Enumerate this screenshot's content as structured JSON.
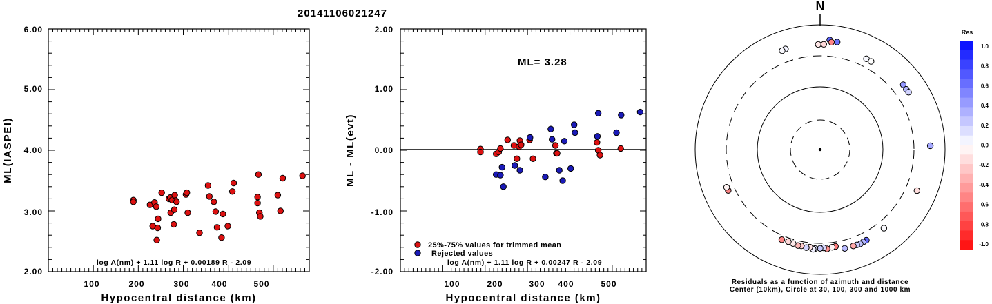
{
  "chart_data": [
    {
      "type": "scatter",
      "title": "20141106021247",
      "xlabel": "Hypocentral distance (km)",
      "ylabel": "ML(IASPEI)",
      "xlim": [
        0,
        580
      ],
      "ylim": [
        2.0,
        6.0
      ],
      "xticks": [
        "100",
        "200",
        "300",
        "400",
        "500"
      ],
      "yticks": [
        "2.00",
        "3.00",
        "4.00",
        "5.00",
        "6.00"
      ],
      "equation": "log A(nm) + 1.11 log R + 0.00189 R - 2.09",
      "marker_color": "#dd1111",
      "x": [
        189,
        189,
        226,
        232,
        236,
        240,
        241,
        244,
        243,
        252,
        268,
        271,
        272,
        275,
        279,
        280,
        281,
        283,
        285,
        306,
        308,
        310,
        336,
        355,
        358,
        368,
        372,
        375,
        385,
        388,
        399,
        409,
        412,
        465,
        465,
        467,
        469,
        471,
        510,
        516,
        521,
        565
      ],
      "y": [
        3.18,
        3.15,
        3.1,
        2.75,
        3.14,
        3.07,
        2.52,
        2.87,
        2.72,
        3.3,
        3.2,
        3.22,
        2.97,
        3.18,
        2.78,
        3.02,
        3.26,
        3.17,
        3.15,
        3.27,
        3.3,
        2.97,
        2.64,
        3.42,
        3.24,
        3.15,
        2.99,
        2.73,
        2.56,
        2.95,
        2.75,
        3.32,
        3.46,
        3.23,
        3.13,
        3.6,
        2.97,
        2.91,
        3.26,
        3.0,
        3.54,
        3.58
      ]
    },
    {
      "type": "scatter",
      "xlabel": "Hypocentral distance (km)",
      "ylabel": "ML - ML(evt)",
      "xlim": [
        0,
        580
      ],
      "ylim": [
        -2.0,
        2.0
      ],
      "xticks": [
        "100",
        "200",
        "300",
        "400",
        "500"
      ],
      "yticks": [
        "-2.00",
        "-1.00",
        "0.00",
        "1.00",
        "2.00"
      ],
      "ml_label": "ML= 3.28",
      "equation": "log A(nm) + 1.11 log R + 0.00247 R - 2.09",
      "legend": [
        "25%-75% values for trimmed mean",
        "Rejected values"
      ],
      "legend_colors": [
        "#dd1111",
        "#1a1ab8"
      ],
      "series": [
        {
          "name": "25%-75% values for trimmed mean",
          "x": [
            189,
            189,
            226,
            232,
            236,
            253,
            268,
            275,
            280,
            282,
            285,
            305,
            313,
            366,
            368,
            370,
            464,
            467,
            471,
            520
          ],
          "y": [
            0.02,
            -0.03,
            -0.06,
            -0.03,
            0.03,
            0.17,
            0.08,
            -0.14,
            0.06,
            0.16,
            0.09,
            0.17,
            -0.14,
            0.08,
            -0.05,
            -0.05,
            0.13,
            0.0,
            -0.08,
            0.03
          ]
        },
        {
          "name": "Rejected values",
          "x": [
            226,
            236,
            240,
            243,
            270,
            282,
            306,
            342,
            355,
            358,
            375,
            383,
            387,
            402,
            410,
            412,
            465,
            467,
            510,
            521,
            566
          ],
          "y": [
            -0.4,
            -0.41,
            -0.28,
            -0.6,
            -0.25,
            -0.33,
            0.21,
            -0.44,
            0.35,
            0.18,
            -0.33,
            -0.5,
            0.15,
            -0.3,
            0.42,
            0.29,
            0.23,
            0.61,
            0.29,
            0.58,
            0.63
          ]
        }
      ]
    },
    {
      "type": "scatter",
      "title": "N",
      "subtitle": "Residuals as a function of azimuth and distance",
      "caption": "Center (10km), Circle at 30, 100, 300 and 1000 km",
      "legend_title": "Res",
      "colorbar_ticks": [
        "1.0",
        "0.8",
        "0.6",
        "0.4",
        "0.2",
        "0.0",
        "-0.2",
        "-0.4",
        "-0.6",
        "-0.8",
        "-1.0"
      ],
      "stations": [
        {
          "az": 5,
          "dist": 565,
          "res": 0.63
        },
        {
          "az": 9,
          "dist": 540,
          "res": 0.58
        },
        {
          "az": 6,
          "dist": 520,
          "res": -0.5
        },
        {
          "az": 359,
          "dist": 467,
          "res": -0.1
        },
        {
          "az": 2,
          "dist": 470,
          "res": -0.15
        },
        {
          "az": 341,
          "dist": 490,
          "res": 0.05
        },
        {
          "az": 339,
          "dist": 480,
          "res": 0.02
        },
        {
          "az": 27,
          "dist": 412,
          "res": 0.03
        },
        {
          "az": 30,
          "dist": 410,
          "res": 0.0
        },
        {
          "az": 52,
          "dist": 470,
          "res": 0.42
        },
        {
          "az": 55,
          "dist": 465,
          "res": 0.29
        },
        {
          "az": 57,
          "dist": 470,
          "res": 0.18
        },
        {
          "az": 88,
          "dist": 565,
          "res": 0.35
        },
        {
          "az": 113,
          "dist": 465,
          "res": -0.14
        },
        {
          "az": 141,
          "dist": 400,
          "res": 0.02
        },
        {
          "az": 153,
          "dist": 408,
          "res": 0.61
        },
        {
          "az": 155,
          "dist": 412,
          "res": 0.3
        },
        {
          "az": 157,
          "dist": 420,
          "res": 0.25
        },
        {
          "az": 159,
          "dist": 415,
          "res": 0.2
        },
        {
          "az": 161,
          "dist": 412,
          "res": -0.35
        },
        {
          "az": 166,
          "dist": 410,
          "res": 0.28
        },
        {
          "az": 171,
          "dist": 355,
          "res": -0.55
        },
        {
          "az": 173,
          "dist": 360,
          "res": -0.05
        },
        {
          "az": 176,
          "dist": 375,
          "res": -0.45
        },
        {
          "az": 178,
          "dist": 358,
          "res": 0.15
        },
        {
          "az": 180,
          "dist": 365,
          "res": 0.22
        },
        {
          "az": 183,
          "dist": 370,
          "res": 0.1
        },
        {
          "az": 184,
          "dist": 380,
          "res": 0.06
        },
        {
          "az": 186,
          "dist": 355,
          "res": -0.12
        },
        {
          "az": 188,
          "dist": 368,
          "res": 0.18
        },
        {
          "az": 191,
          "dist": 355,
          "res": -0.2
        },
        {
          "az": 193,
          "dist": 360,
          "res": -0.3
        },
        {
          "az": 196,
          "dist": 350,
          "res": -0.08
        },
        {
          "az": 199,
          "dist": 345,
          "res": -0.15
        },
        {
          "az": 203,
          "dist": 352,
          "res": -0.5
        },
        {
          "az": 246,
          "dist": 389,
          "res": -0.5
        },
        {
          "az": 248,
          "dist": 392,
          "res": -0.05
        }
      ]
    }
  ]
}
